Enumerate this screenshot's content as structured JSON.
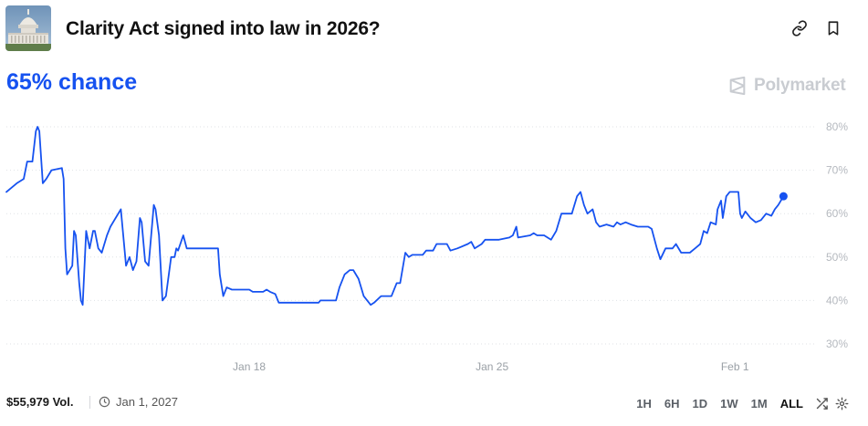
{
  "header": {
    "title": "Clarity Act signed into law in 2026?",
    "thumbnail_icon": "capitol-building-icon",
    "actions": [
      {
        "icon": "link-icon"
      },
      {
        "icon": "bookmark-icon"
      }
    ]
  },
  "summary": {
    "chance_label": "65% chance",
    "brand_name": "Polymarket",
    "accent_color": "#1652f0"
  },
  "footer": {
    "volume": "$55,979 Vol.",
    "end_date": "Jan 1, 2027",
    "ranges": [
      "1H",
      "6H",
      "1D",
      "1W",
      "1M",
      "ALL"
    ],
    "active_range": "ALL"
  },
  "chart_data": {
    "type": "line",
    "x_ticks": [
      "Jan 18",
      "Jan 25",
      "Feb 1"
    ],
    "y_ticks": [
      "80%",
      "70%",
      "60%",
      "50%",
      "40%",
      "30%"
    ],
    "ylim": [
      30,
      80
    ],
    "grid": true,
    "series": [
      {
        "color": "#1652f0",
        "points": [
          [
            0.0,
            65
          ],
          [
            0.3,
            67
          ],
          [
            0.5,
            68
          ],
          [
            0.6,
            72
          ],
          [
            0.75,
            72
          ],
          [
            0.85,
            79
          ],
          [
            0.9,
            80
          ],
          [
            0.95,
            79
          ],
          [
            1.05,
            67
          ],
          [
            1.15,
            68
          ],
          [
            1.3,
            70
          ],
          [
            1.6,
            70.5
          ],
          [
            1.65,
            68
          ],
          [
            1.7,
            52
          ],
          [
            1.75,
            46
          ],
          [
            1.9,
            48
          ],
          [
            1.95,
            56
          ],
          [
            2.0,
            55
          ],
          [
            2.1,
            44
          ],
          [
            2.15,
            40
          ],
          [
            2.2,
            39
          ],
          [
            2.3,
            56
          ],
          [
            2.4,
            52
          ],
          [
            2.5,
            56
          ],
          [
            2.55,
            56
          ],
          [
            2.65,
            52
          ],
          [
            2.75,
            51
          ],
          [
            2.9,
            55
          ],
          [
            3.0,
            57
          ],
          [
            3.3,
            61
          ],
          [
            3.45,
            48
          ],
          [
            3.55,
            50
          ],
          [
            3.65,
            47
          ],
          [
            3.75,
            49
          ],
          [
            3.85,
            59
          ],
          [
            3.9,
            58
          ],
          [
            4.0,
            49
          ],
          [
            4.1,
            48
          ],
          [
            4.25,
            62
          ],
          [
            4.3,
            61
          ],
          [
            4.4,
            55
          ],
          [
            4.5,
            40
          ],
          [
            4.6,
            41
          ],
          [
            4.75,
            50
          ],
          [
            4.85,
            50
          ],
          [
            4.9,
            52
          ],
          [
            4.95,
            51.5
          ],
          [
            5.1,
            55
          ],
          [
            5.2,
            52
          ],
          [
            5.5,
            52
          ],
          [
            6.1,
            52
          ],
          [
            6.15,
            46
          ],
          [
            6.25,
            41
          ],
          [
            6.35,
            43
          ],
          [
            6.5,
            42.5
          ],
          [
            7.0,
            42.5
          ],
          [
            7.1,
            42
          ],
          [
            7.4,
            42
          ],
          [
            7.5,
            42.5
          ],
          [
            7.6,
            42
          ],
          [
            7.75,
            41.5
          ],
          [
            7.85,
            39.5
          ],
          [
            8.2,
            39.5
          ],
          [
            8.5,
            39.5
          ],
          [
            9.0,
            39.5
          ],
          [
            9.05,
            40
          ],
          [
            9.5,
            40
          ],
          [
            9.6,
            43
          ],
          [
            9.75,
            46
          ],
          [
            9.9,
            47
          ],
          [
            10.0,
            47
          ],
          [
            10.15,
            45
          ],
          [
            10.3,
            41
          ],
          [
            10.5,
            39
          ],
          [
            10.6,
            39.5
          ],
          [
            10.8,
            41
          ],
          [
            11.1,
            41
          ],
          [
            11.25,
            44
          ],
          [
            11.35,
            44
          ],
          [
            11.5,
            51
          ],
          [
            11.6,
            50
          ],
          [
            11.7,
            50.5
          ],
          [
            12.0,
            50.5
          ],
          [
            12.1,
            51.5
          ],
          [
            12.3,
            51.5
          ],
          [
            12.4,
            53
          ],
          [
            12.7,
            53
          ],
          [
            12.8,
            51.5
          ],
          [
            13.0,
            52
          ],
          [
            13.3,
            53
          ],
          [
            13.4,
            53.5
          ],
          [
            13.5,
            52
          ],
          [
            13.7,
            53
          ],
          [
            13.8,
            54
          ],
          [
            14.2,
            54
          ],
          [
            14.5,
            54.5
          ],
          [
            14.6,
            55
          ],
          [
            14.7,
            57
          ],
          [
            14.75,
            54.5
          ],
          [
            15.1,
            55
          ],
          [
            15.2,
            55.5
          ],
          [
            15.3,
            55
          ],
          [
            15.5,
            55
          ],
          [
            15.7,
            54
          ],
          [
            15.85,
            56
          ],
          [
            16.0,
            60
          ],
          [
            16.3,
            60
          ],
          [
            16.45,
            64
          ],
          [
            16.55,
            65
          ],
          [
            16.65,
            62
          ],
          [
            16.75,
            60
          ],
          [
            16.9,
            61
          ],
          [
            17.0,
            58
          ],
          [
            17.1,
            57
          ],
          [
            17.3,
            57.5
          ],
          [
            17.5,
            57
          ],
          [
            17.6,
            58
          ],
          [
            17.7,
            57.5
          ],
          [
            17.85,
            58
          ],
          [
            18.0,
            57.5
          ],
          [
            18.2,
            57
          ],
          [
            18.5,
            57
          ],
          [
            18.6,
            56.5
          ],
          [
            18.75,
            52
          ],
          [
            18.85,
            49.5
          ],
          [
            19.0,
            52
          ],
          [
            19.2,
            52
          ],
          [
            19.3,
            53
          ],
          [
            19.45,
            51
          ],
          [
            19.7,
            51
          ],
          [
            19.85,
            52
          ],
          [
            20.0,
            53
          ],
          [
            20.1,
            56
          ],
          [
            20.2,
            55.5
          ],
          [
            20.3,
            58
          ],
          [
            20.45,
            57.5
          ],
          [
            20.5,
            61
          ],
          [
            20.6,
            63
          ],
          [
            20.65,
            59
          ],
          [
            20.75,
            64
          ],
          [
            20.85,
            65
          ],
          [
            21.1,
            65
          ],
          [
            21.15,
            60
          ],
          [
            21.2,
            59
          ],
          [
            21.3,
            60.5
          ],
          [
            21.45,
            59
          ],
          [
            21.6,
            58
          ],
          [
            21.75,
            58.5
          ],
          [
            21.9,
            60
          ],
          [
            22.05,
            59.5
          ],
          [
            22.15,
            61
          ],
          [
            22.25,
            62
          ],
          [
            22.4,
            64
          ]
        ]
      }
    ],
    "x_tick_positions": [
      7,
      14,
      21
    ],
    "x_range": [
      0,
      23.1
    ]
  }
}
